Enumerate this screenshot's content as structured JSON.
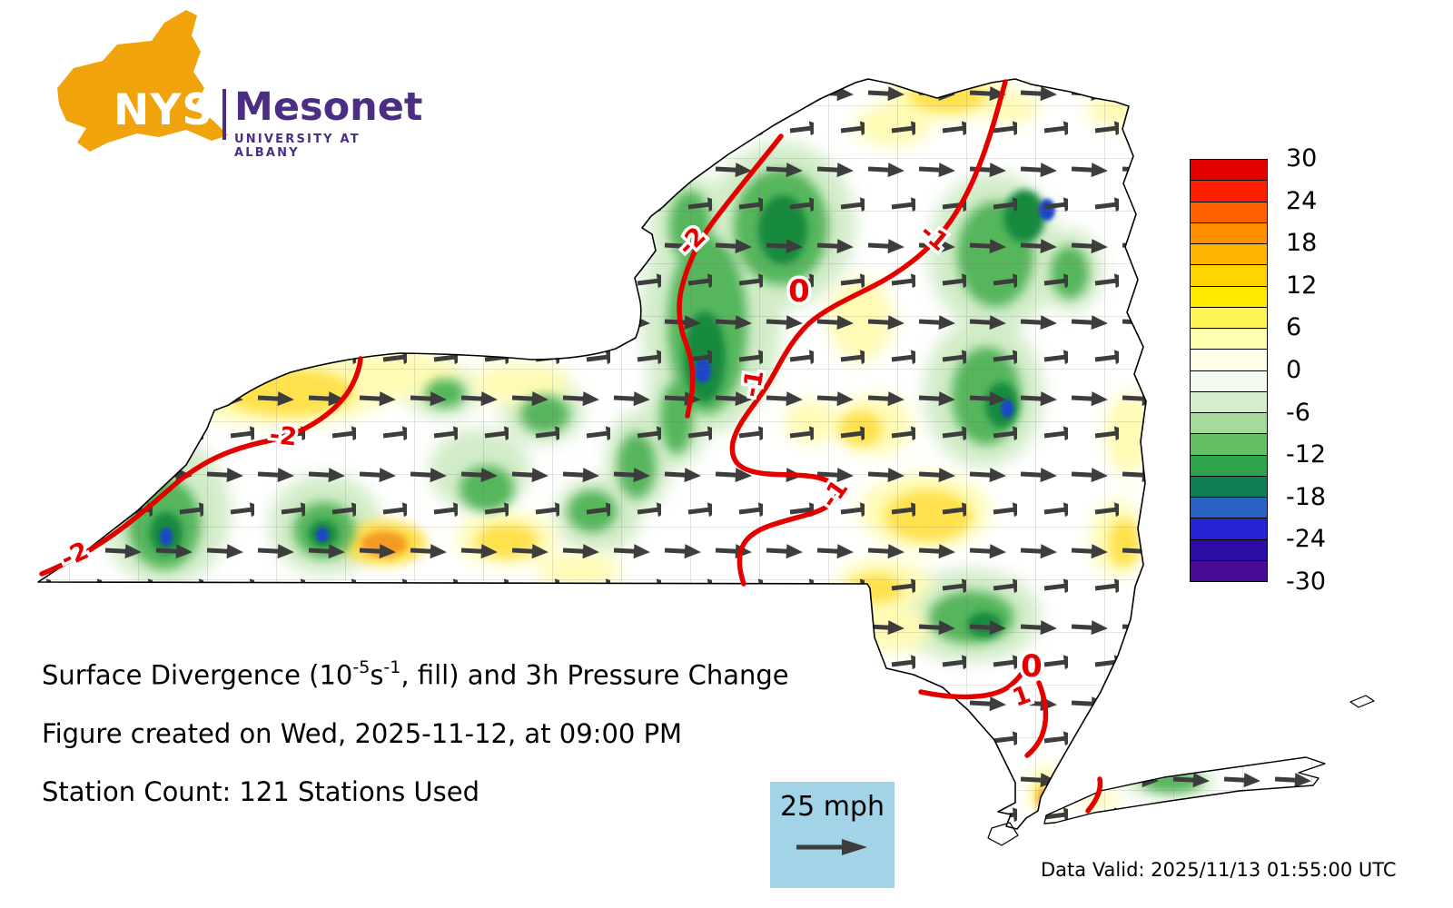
{
  "logo": {
    "acronym": "NYS",
    "name": "Mesonet",
    "sub": "UNIVERSITY AT ALBANY"
  },
  "colorbar": {
    "ticks": [
      "30",
      "24",
      "18",
      "12",
      "6",
      "0",
      "-6",
      "-12",
      "-18",
      "-24",
      "-30"
    ],
    "segments": [
      "#e40000",
      "#ff1e00",
      "#ff6000",
      "#ff8f00",
      "#ffb400",
      "#ffd400",
      "#ffea00",
      "#fff655",
      "#ffffb0",
      "#ffffe8",
      "#f2f9ee",
      "#d5edca",
      "#a5da9c",
      "#62c063",
      "#2ea34b",
      "#0f7e53",
      "#2a62c4",
      "#2424d2",
      "#2e0ca8",
      "#490b96"
    ]
  },
  "map": {
    "contour_labels": [
      "-2",
      "-2",
      "-2",
      "-1",
      "-1",
      "-1",
      "0",
      "0",
      "1"
    ],
    "contour_color": "#e50000",
    "arrow_color": "#3d3d3d"
  },
  "caption": {
    "title_pre": "Surface Divergence (10",
    "title_sup1": "-5",
    "title_mid": "s",
    "title_sup2": "-1",
    "title_post": ", fill) and 3h Pressure Change",
    "created": "Figure created on Wed, 2025-11-12, at 09:00 PM",
    "stations": "Station Count: 121 Stations Used"
  },
  "wind_legend": {
    "label": "25 mph"
  },
  "footer": {
    "data_valid": "Data Valid: 2025/11/13 01:55:00 UTC"
  }
}
